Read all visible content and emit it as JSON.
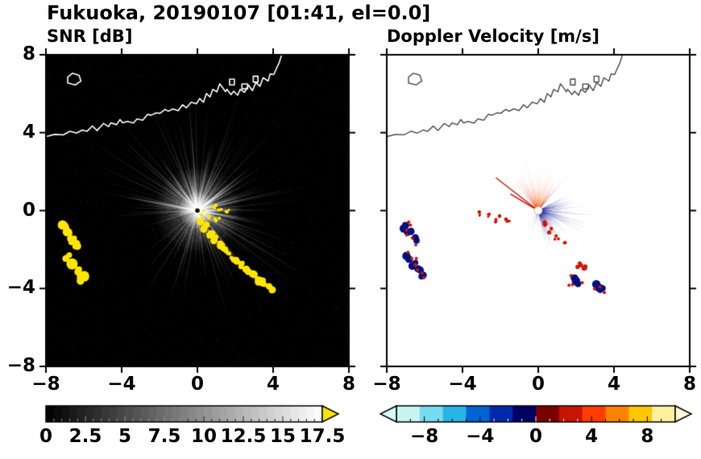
{
  "title": "Fukuoka, 20190107 [01:41, el=0.0]",
  "chart_data": {
    "type": "heatmap",
    "subtype": "dual-panel weather-radar PPI",
    "title": "Fukuoka, 20190107 [01:41, el=0.0]",
    "panels": {
      "snr": {
        "label": "SNR [dB]"
      },
      "doppler": {
        "label": "Doppler Velocity [m/s]"
      }
    },
    "axes": {
      "range": [
        -8,
        8
      ],
      "tick_values": [
        -8,
        -4,
        0,
        4,
        8
      ],
      "tick_labels": [
        "−8",
        "−4",
        "0",
        "4",
        "8"
      ],
      "grid": false
    },
    "colorbars": {
      "snr": {
        "range": [
          0,
          17.5
        ],
        "tick_values": [
          0,
          2.5,
          5,
          7.5,
          10,
          12.5,
          15,
          17.5
        ],
        "tick_labels": [
          "0",
          "2.5",
          "5",
          "7.5",
          "10",
          "12.5",
          "15",
          "17.5"
        ],
        "start_color": "#000000",
        "end_color": "#ffffff",
        "over_arrow_color": "#ffe600",
        "segments": 35
      },
      "doppler": {
        "range": [
          -10,
          10
        ],
        "tick_values": [
          -8,
          -4,
          0,
          4,
          8
        ],
        "tick_labels": [
          "−8",
          "−4",
          "0",
          "4",
          "8"
        ],
        "colors": [
          "#c8f5f0",
          "#78dcf0",
          "#28b4e6",
          "#0064d2",
          "#0028aa",
          "#000064",
          "#780000",
          "#c81400",
          "#ff3c00",
          "#ff8200",
          "#ffc800",
          "#fff0a0"
        ],
        "under_arrow_color": "#d7fafa",
        "over_arrow_color": "#fffbd2"
      }
    },
    "features": {
      "coastline": [
        [
          -8,
          3.85
        ],
        [
          -7.5,
          3.95
        ],
        [
          -7.1,
          3.9
        ],
        [
          -6.7,
          4.05
        ],
        [
          -6.4,
          3.95
        ],
        [
          -6.1,
          4.1
        ],
        [
          -5.8,
          4.05
        ],
        [
          -5.55,
          4.3
        ],
        [
          -5.3,
          4.15
        ],
        [
          -5,
          4.45
        ],
        [
          -4.75,
          4.35
        ],
        [
          -4.55,
          4.55
        ],
        [
          -4.3,
          4.4
        ],
        [
          -4.1,
          4.65
        ],
        [
          -3.9,
          4.5
        ],
        [
          -3.65,
          4.6
        ],
        [
          -3.4,
          4.5
        ],
        [
          -3.15,
          4.75
        ],
        [
          -2.9,
          4.65
        ],
        [
          -2.65,
          4.95
        ],
        [
          -2.45,
          4.85
        ],
        [
          -2.2,
          5.05
        ],
        [
          -2,
          4.95
        ],
        [
          -1.75,
          5.15
        ],
        [
          -1.5,
          5.05
        ],
        [
          -1.3,
          5.25
        ],
        [
          -1.05,
          5.15
        ],
        [
          -0.8,
          5.4
        ],
        [
          -0.55,
          5.3
        ],
        [
          -0.3,
          5.55
        ],
        [
          -0.05,
          5.45
        ],
        [
          0.15,
          5.75
        ],
        [
          0.35,
          5.6
        ],
        [
          0.5,
          6
        ],
        [
          0.65,
          5.85
        ],
        [
          0.8,
          6.2
        ],
        [
          1,
          6.05
        ],
        [
          1.15,
          6.5
        ],
        [
          1.3,
          6.3
        ],
        [
          1.45,
          6.1
        ],
        [
          1.6,
          6.25
        ],
        [
          1.75,
          5.95
        ],
        [
          1.95,
          6.15
        ],
        [
          2.1,
          5.9
        ],
        [
          2.3,
          6.2
        ],
        [
          2.5,
          6.05
        ],
        [
          2.7,
          6.4
        ],
        [
          2.9,
          6.2
        ],
        [
          3.1,
          6.55
        ],
        [
          3.3,
          6.4
        ],
        [
          3.5,
          6.8
        ],
        [
          3.7,
          6.65
        ],
        [
          3.85,
          7.05
        ],
        [
          4,
          6.95
        ],
        [
          4.15,
          7.35
        ],
        [
          4.3,
          7.6
        ],
        [
          4.45,
          8.2
        ]
      ],
      "island": [
        [
          -6.85,
          6.55
        ],
        [
          -6.45,
          6.45
        ],
        [
          -6.15,
          6.65
        ],
        [
          -6.25,
          6.95
        ],
        [
          -6.6,
          7.05
        ],
        [
          -6.85,
          6.85
        ]
      ],
      "port_marks": [
        [
          1.7,
          6.45,
          0.25,
          0.3
        ],
        [
          2.35,
          6.25,
          0.3,
          0.25
        ],
        [
          2.95,
          6.6,
          0.25,
          0.3
        ]
      ],
      "snr": {
        "ray_count": 360,
        "max_range": 7,
        "speck_count": 2600,
        "blob_color": "#ffe600",
        "yellow_clusters": [
          [
            [
              -7,
              -0.85,
              5
            ],
            [
              -6.85,
              -1.15,
              6
            ],
            [
              -6.6,
              -1.5,
              5
            ],
            [
              -6.45,
              -1.8,
              4
            ]
          ],
          [
            [
              -6.85,
              -2.4,
              5
            ],
            [
              -6.6,
              -2.75,
              6
            ],
            [
              -6.35,
              -3.05,
              5
            ],
            [
              -6.05,
              -3.3,
              5
            ],
            [
              -6.2,
              -3.5,
              4
            ]
          ]
        ],
        "yellow_chain": [
          [
            0.15,
            -0.5
          ],
          [
            0.45,
            -0.85
          ],
          [
            0.7,
            -1.15
          ],
          [
            0.95,
            -1.45
          ],
          [
            1.2,
            -1.75
          ],
          [
            1.45,
            -2
          ],
          [
            1.7,
            -2.3
          ],
          [
            2,
            -2.55
          ],
          [
            2.3,
            -2.8
          ],
          [
            2.6,
            -3.05
          ],
          [
            2.9,
            -3.3
          ],
          [
            3.2,
            -3.55
          ],
          [
            3.5,
            -3.7
          ],
          [
            3.85,
            -4
          ]
        ],
        "yellow_specks": [
          [
            0.85,
            0.2
          ],
          [
            1.2,
            0.1
          ],
          [
            1.55,
            -0.05
          ],
          [
            0.5,
            -0.3
          ],
          [
            0.25,
            -0.12
          ],
          [
            1.05,
            -0.45
          ]
        ]
      },
      "doppler": {
        "away_fan": {
          "angle_start": 48,
          "angle_end": 132,
          "colors": [
            "#ff7812",
            "#ff5a00",
            "#ff9632",
            "#e83c00",
            "#d01800"
          ]
        },
        "toward_fan": {
          "angle_start": -78,
          "angle_end": 28,
          "colors": [
            "#000078",
            "#0a1eb4",
            "#1e3cd2",
            "#000064"
          ]
        },
        "down_spikes": {
          "angle_start": -128,
          "angle_end": -82,
          "color": "#000a6e"
        },
        "thin_rays": [
          {
            "angle": 143,
            "r": 2.8
          },
          {
            "angle": 150,
            "r": 1.7
          }
        ],
        "thin_ray_color": "#d01400",
        "red_fringe": [
          [
            0.3,
            -0.7
          ],
          [
            0.65,
            -1.05
          ],
          [
            1,
            -1.4
          ],
          [
            1.3,
            -1.7
          ],
          [
            2.15,
            -2.8
          ],
          [
            2.45,
            -3
          ]
        ],
        "red_specks": [
          [
            -3.05,
            -0.15
          ],
          [
            -2.7,
            -0.3
          ],
          [
            -2.35,
            -0.5
          ],
          [
            -1.95,
            -0.35
          ],
          [
            -1.6,
            -0.5
          ]
        ],
        "blob_clusters": [
          [
            [
              -7,
              -0.85
            ],
            [
              -6.8,
              -1.15
            ],
            [
              -6.55,
              -1.5
            ]
          ],
          [
            [
              -6.85,
              -2.4
            ],
            [
              -6.6,
              -2.75
            ],
            [
              -6.3,
              -3.05
            ],
            [
              -6.05,
              -3.35
            ]
          ],
          [
            [
              1.8,
              -3.55
            ],
            [
              2.05,
              -3.7
            ]
          ],
          [
            [
              3.15,
              -3.85
            ],
            [
              3.4,
              -4
            ]
          ]
        ],
        "blob_color": "#000f82",
        "blob_edge_color": "#d01400",
        "center_dot_color": "#ffffff"
      }
    }
  }
}
